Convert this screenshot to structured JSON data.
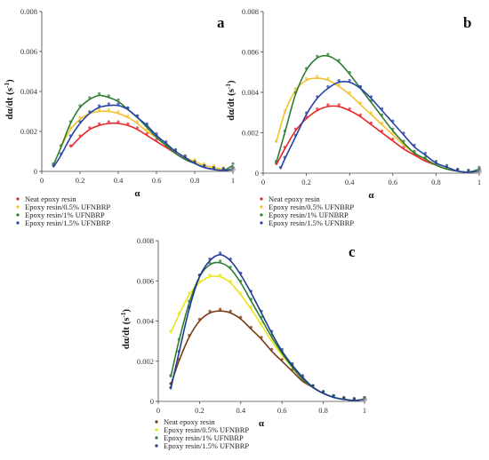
{
  "chart_data": [
    {
      "type": "scatter",
      "panel": "a",
      "xlabel": "α",
      "ylabel_main": "dα/dt (s",
      "ylabel_sup": "-1",
      "ylabel_end": ")",
      "xlim": [
        0,
        1
      ],
      "ylim": [
        0,
        0.008
      ],
      "x_ticks": [
        0,
        0.2,
        0.4,
        0.6,
        0.8,
        1
      ],
      "x_tick_labels": [
        "0",
        "0.2",
        "0.4",
        "0.6",
        "0.8",
        "1"
      ],
      "y_ticks": [
        0,
        0.002,
        0.004,
        0.006,
        0.008
      ],
      "y_tick_labels": [
        "0",
        "0.002",
        "0.004",
        "0.006",
        "0.008"
      ],
      "legend_position": "bottom-left",
      "series": [
        {
          "name": "Neat epoxy resin",
          "color": "#e8262a",
          "x": [
            0.15,
            0.2,
            0.25,
            0.3,
            0.35,
            0.4,
            0.45,
            0.5,
            0.55,
            0.6,
            0.65,
            0.7,
            0.75,
            0.8,
            0.85,
            0.9,
            0.95,
            1.0
          ],
          "y": [
            0.0012,
            0.0017,
            0.0021,
            0.0023,
            0.0024,
            0.0024,
            0.0023,
            0.0021,
            0.0018,
            0.0015,
            0.0012,
            0.0009,
            0.0006,
            0.0004,
            0.0002,
            0.0001,
            5e-05,
            0.0001
          ]
        },
        {
          "name": "Epoxy resin/0.5%  UFNBRP",
          "color": "#f2c12e",
          "x": [
            0.1,
            0.15,
            0.2,
            0.25,
            0.3,
            0.35,
            0.4,
            0.45,
            0.5,
            0.55,
            0.6,
            0.65,
            0.7,
            0.75,
            0.8,
            0.85,
            0.9,
            0.95,
            1.0
          ],
          "y": [
            0.0012,
            0.0021,
            0.0026,
            0.0029,
            0.003,
            0.003,
            0.0029,
            0.0027,
            0.0024,
            0.002,
            0.0017,
            0.0013,
            0.001,
            0.0007,
            0.0005,
            0.0003,
            0.0002,
            0.0001,
            0.0001
          ]
        },
        {
          "name": "Epoxy resin/1%  UFNBRP",
          "color": "#2e7d32",
          "x": [
            0.06,
            0.1,
            0.15,
            0.2,
            0.25,
            0.3,
            0.35,
            0.4,
            0.45,
            0.5,
            0.55,
            0.6,
            0.65,
            0.7,
            0.75,
            0.8,
            0.85,
            0.9,
            0.95,
            1.0
          ],
          "y": [
            0.0003,
            0.0012,
            0.0024,
            0.0032,
            0.0036,
            0.0038,
            0.0037,
            0.0035,
            0.0031,
            0.0027,
            0.0022,
            0.0017,
            0.0013,
            0.0009,
            0.0006,
            0.0004,
            0.0002,
            0.0001,
            5e-05,
            0.0003
          ]
        },
        {
          "name": "Epoxy resin/1.5%  UFNBRP",
          "color": "#2743a8",
          "x": [
            0.06,
            0.1,
            0.15,
            0.2,
            0.25,
            0.3,
            0.35,
            0.4,
            0.45,
            0.5,
            0.55,
            0.6,
            0.65,
            0.7,
            0.75,
            0.8,
            0.85,
            0.9,
            0.95,
            1.0
          ],
          "y": [
            0.0002,
            0.0008,
            0.0017,
            0.0024,
            0.0029,
            0.0032,
            0.0033,
            0.0033,
            0.0031,
            0.0027,
            0.0023,
            0.0018,
            0.0014,
            0.001,
            0.0007,
            0.0004,
            0.0002,
            0.0001,
            5e-05,
            0.0001
          ]
        }
      ]
    },
    {
      "type": "scatter",
      "panel": "b",
      "xlabel": "α",
      "ylabel_main": "dα/dt (s",
      "ylabel_sup": "-1",
      "ylabel_end": ")",
      "xlim": [
        0,
        1
      ],
      "ylim": [
        0,
        0.008
      ],
      "x_ticks": [
        0,
        0.2,
        0.4,
        0.6,
        0.8,
        1
      ],
      "x_tick_labels": [
        "0",
        "0.2",
        "0.4",
        "0.6",
        "0.8",
        "1"
      ],
      "y_ticks": [
        0,
        0.002,
        0.004,
        0.006,
        0.008
      ],
      "y_tick_labels": [
        "0",
        "0.002",
        "0.004",
        "0.006",
        "0.008"
      ],
      "legend_position": "bottom-left",
      "series": [
        {
          "name": "Neat epoxy resin",
          "color": "#e8262a",
          "x": [
            0.06,
            0.1,
            0.15,
            0.2,
            0.25,
            0.3,
            0.35,
            0.4,
            0.45,
            0.5,
            0.55,
            0.6,
            0.65,
            0.7,
            0.75,
            0.8,
            0.85,
            0.9,
            0.95,
            1.0
          ],
          "y": [
            0.0004,
            0.0012,
            0.0021,
            0.0027,
            0.0031,
            0.0033,
            0.0033,
            0.0031,
            0.0028,
            0.0024,
            0.002,
            0.0016,
            0.0012,
            0.0009,
            0.0006,
            0.0004,
            0.0002,
            0.0001,
            5e-05,
            0.0001
          ]
        },
        {
          "name": "Epoxy resin/0.5%  UFNBRP",
          "color": "#f2c12e",
          "x": [
            0.06,
            0.1,
            0.15,
            0.2,
            0.25,
            0.3,
            0.35,
            0.4,
            0.45,
            0.5,
            0.55,
            0.6,
            0.65,
            0.7,
            0.75,
            0.8,
            0.85,
            0.9,
            0.95,
            1.0
          ],
          "y": [
            0.0015,
            0.003,
            0.0041,
            0.0046,
            0.0047,
            0.0046,
            0.0043,
            0.0039,
            0.0034,
            0.0029,
            0.0024,
            0.0019,
            0.0014,
            0.001,
            0.0007,
            0.0004,
            0.0002,
            0.0001,
            5e-05,
            0.0001
          ]
        },
        {
          "name": "Epoxy resin/1%  UFNBRP",
          "color": "#2e7d32",
          "x": [
            0.06,
            0.1,
            0.15,
            0.2,
            0.25,
            0.3,
            0.35,
            0.4,
            0.45,
            0.5,
            0.55,
            0.6,
            0.65,
            0.7,
            0.75,
            0.8,
            0.85,
            0.9,
            0.95,
            1.0
          ],
          "y": [
            0.0005,
            0.002,
            0.0039,
            0.0051,
            0.0057,
            0.0058,
            0.0055,
            0.0049,
            0.0042,
            0.0035,
            0.0028,
            0.0021,
            0.0015,
            0.001,
            0.0007,
            0.0004,
            0.0002,
            0.0001,
            5e-05,
            0.0002
          ]
        },
        {
          "name": "Epoxy resin/1.5%  UFNBRP",
          "color": "#2743a8",
          "x": [
            0.08,
            0.1,
            0.15,
            0.2,
            0.25,
            0.3,
            0.35,
            0.4,
            0.45,
            0.5,
            0.55,
            0.6,
            0.65,
            0.7,
            0.75,
            0.8,
            0.85,
            0.9,
            0.95,
            1.0
          ],
          "y": [
            0.0002,
            0.0007,
            0.0018,
            0.0029,
            0.0037,
            0.0042,
            0.0045,
            0.0045,
            0.0042,
            0.0037,
            0.0031,
            0.0025,
            0.0019,
            0.0013,
            0.0009,
            0.0005,
            0.0003,
            0.0001,
            5e-05,
            0.0001
          ]
        }
      ]
    },
    {
      "type": "scatter",
      "panel": "c",
      "xlabel": "α",
      "ylabel_main": "dα/dt (s",
      "ylabel_sup": "-1",
      "ylabel_end": ")",
      "xlim": [
        0,
        1
      ],
      "ylim": [
        0,
        0.008
      ],
      "x_ticks": [
        0,
        0.2,
        0.4,
        0.6,
        0.8,
        1
      ],
      "x_tick_labels": [
        "0",
        "0.2",
        "0.4",
        "0.6",
        "0.8",
        "1"
      ],
      "y_ticks": [
        0,
        0.002,
        0.004,
        0.006,
        0.008
      ],
      "y_tick_labels": [
        "0",
        "0.002",
        "0.004",
        "0.006",
        "0.008"
      ],
      "legend_position": "bottom-left",
      "series": [
        {
          "name": "Neat epoxy resin",
          "color": "#7a3a12",
          "x": [
            0.06,
            0.1,
            0.15,
            0.2,
            0.25,
            0.3,
            0.35,
            0.4,
            0.45,
            0.5,
            0.55,
            0.6,
            0.65,
            0.7,
            0.75,
            0.8,
            0.85,
            0.9,
            0.95,
            1.0
          ],
          "y": [
            0.0008,
            0.002,
            0.0032,
            0.004,
            0.0044,
            0.0045,
            0.0044,
            0.0041,
            0.0036,
            0.0031,
            0.0025,
            0.002,
            0.0015,
            0.001,
            0.0007,
            0.0004,
            0.0002,
            0.0001,
            5e-05,
            0.0001
          ]
        },
        {
          "name": "Epoxy resin/0.5%  UFNBRP",
          "color": "#e6e61a",
          "x": [
            0.06,
            0.1,
            0.15,
            0.2,
            0.25,
            0.3,
            0.35,
            0.4,
            0.45,
            0.5,
            0.55,
            0.6,
            0.65,
            0.7,
            0.75,
            0.8,
            0.85,
            0.9,
            0.95,
            1.0
          ],
          "y": [
            0.0034,
            0.0043,
            0.0053,
            0.0059,
            0.0062,
            0.0062,
            0.0059,
            0.0053,
            0.0046,
            0.0038,
            0.003,
            0.0023,
            0.0017,
            0.0011,
            0.0007,
            0.0004,
            0.0002,
            0.0001,
            5e-05,
            0.0001
          ]
        },
        {
          "name": "Epoxy resin/1%  UFNBRP",
          "color": "#2e7d32",
          "x": [
            0.06,
            0.1,
            0.15,
            0.2,
            0.25,
            0.3,
            0.35,
            0.4,
            0.45,
            0.5,
            0.55,
            0.6,
            0.65,
            0.7,
            0.75,
            0.8,
            0.85,
            0.9,
            0.95,
            1.0
          ],
          "y": [
            0.0012,
            0.003,
            0.0049,
            0.0062,
            0.0068,
            0.0069,
            0.0066,
            0.0059,
            0.005,
            0.0041,
            0.0032,
            0.0024,
            0.0017,
            0.0011,
            0.0007,
            0.0004,
            0.0002,
            0.0001,
            5e-05,
            0.0001
          ]
        },
        {
          "name": "Epoxy resin/1.5%  UFNBRP",
          "color": "#1f3a93",
          "x": [
            0.06,
            0.1,
            0.15,
            0.2,
            0.25,
            0.3,
            0.35,
            0.4,
            0.45,
            0.5,
            0.55,
            0.6,
            0.65,
            0.7,
            0.75,
            0.8,
            0.85,
            0.9,
            0.95,
            1.0
          ],
          "y": [
            0.0006,
            0.0024,
            0.0046,
            0.0062,
            0.007,
            0.0073,
            0.007,
            0.0063,
            0.0054,
            0.0044,
            0.0034,
            0.0025,
            0.0018,
            0.0012,
            0.0007,
            0.0004,
            0.0002,
            0.0001,
            5e-05,
            0.0001
          ]
        }
      ]
    }
  ]
}
